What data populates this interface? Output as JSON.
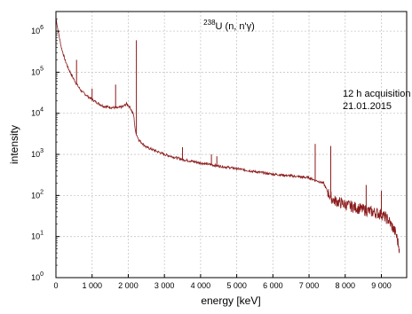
{
  "chart_data": {
    "type": "line",
    "title_prefix": "238",
    "title_main": "U (n, n'γ)",
    "xlabel": "energy [keV]",
    "ylabel": "intensity",
    "xlim": [
      0,
      9700
    ],
    "ylim": [
      1,
      3000000
    ],
    "y_scale": "log",
    "grid": true,
    "x_ticks": [
      0,
      1000,
      2000,
      3000,
      4000,
      5000,
      6000,
      7000,
      8000,
      9000
    ],
    "x_tick_labels": [
      "0",
      "1 000",
      "2 000",
      "3 000",
      "4 000",
      "5 000",
      "6 000",
      "7 000",
      "8 000",
      "9 000"
    ],
    "y_ticks": [
      1,
      10,
      100,
      1000,
      10000,
      100000,
      1000000
    ],
    "y_tick_exponents": [
      "0",
      "1",
      "2",
      "3",
      "4",
      "5",
      "6"
    ],
    "y_tick_base": "10",
    "annotations": [
      "12 h acquisition",
      "21.01.2015"
    ],
    "series": [
      {
        "color": "#8b1a1a",
        "x": [
          5,
          60,
          150,
          250,
          350,
          450,
          550,
          700,
          900,
          1100,
          1300,
          1500,
          1700,
          1850,
          1950,
          2050,
          2150,
          2200,
          2300,
          2500,
          3000,
          3500,
          4000,
          4500,
          5000,
          5500,
          6000,
          6500,
          7000,
          7200,
          7400,
          7500,
          7600,
          7700,
          8000,
          8500,
          9000,
          9200,
          9400,
          9500
        ],
        "y": [
          2000000,
          1000000,
          400000,
          200000,
          120000,
          80000,
          55000,
          35000,
          25000,
          19000,
          15000,
          14000,
          13500,
          14500,
          17000,
          14000,
          9000,
          3500,
          2200,
          1500,
          1000,
          750,
          620,
          520,
          450,
          380,
          330,
          300,
          270,
          230,
          200,
          130,
          90,
          75,
          60,
          45,
          35,
          25,
          12,
          5
        ],
        "peaks": [
          {
            "x": 570,
            "y": 200000
          },
          {
            "x": 1000,
            "y": 40000
          },
          {
            "x": 1650,
            "y": 50000
          },
          {
            "x": 2225,
            "y": 600000
          },
          {
            "x": 3500,
            "y": 1500
          },
          {
            "x": 4300,
            "y": 1000
          },
          {
            "x": 4450,
            "y": 900
          },
          {
            "x": 7170,
            "y": 1800
          },
          {
            "x": 7600,
            "y": 1600
          },
          {
            "x": 8580,
            "y": 180
          },
          {
            "x": 9000,
            "y": 130
          }
        ]
      }
    ]
  }
}
